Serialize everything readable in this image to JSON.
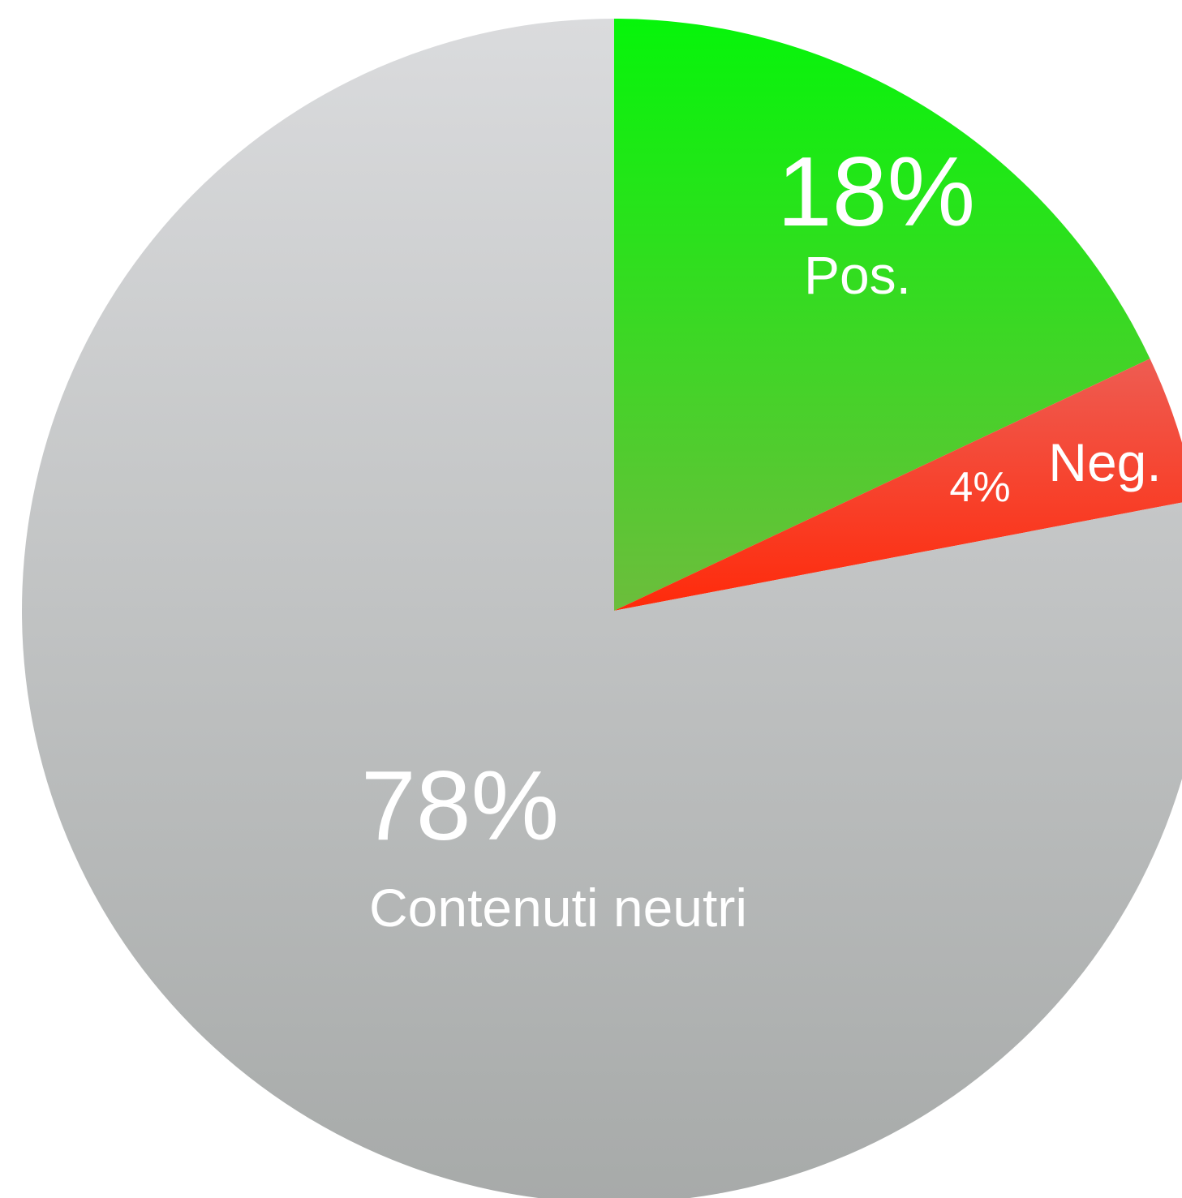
{
  "chart_data": {
    "type": "pie",
    "categories": [
      "Pos.",
      "Neg.",
      "Contenuti neutri"
    ],
    "values": [
      18,
      4,
      78
    ],
    "value_labels": [
      "18%",
      "4%",
      "78%"
    ],
    "colors": [
      [
        "#06f50a",
        "#6cbd3c"
      ],
      [
        "#ee5c52",
        "#ff2a0a"
      ],
      [
        "#dadbdd",
        "#a7aaa9"
      ]
    ]
  }
}
